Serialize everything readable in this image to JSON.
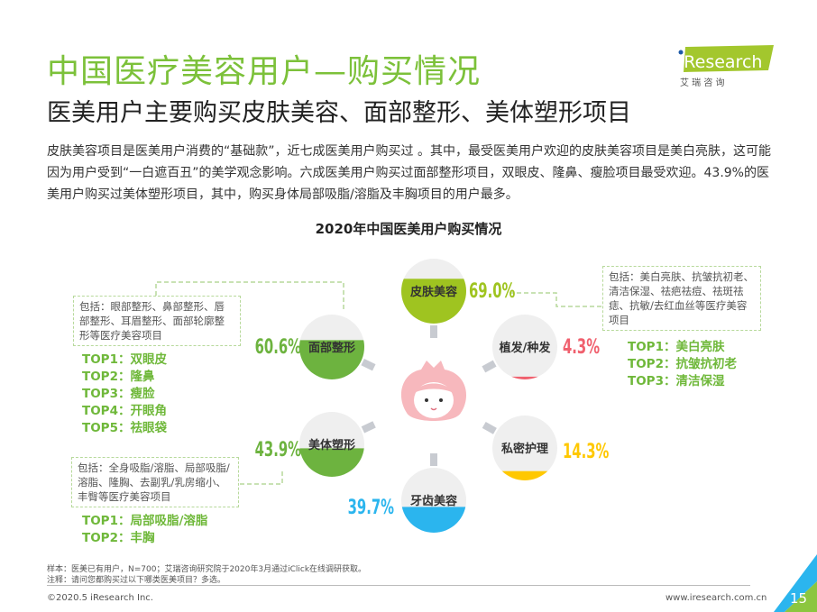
{
  "header": {
    "title": "中国医疗美容用户—购买情况",
    "subtitle": "医美用户主要购买皮肤美容、面部整形、美体塑形项目",
    "logo_text": "iResearch",
    "logo_cn": "艾 瑞 咨 询"
  },
  "intro": "皮肤美容项目是医美用户消费的“基础款”，近七成医美用户购买过 。其中，最受医美用户欢迎的皮肤美容项目是美白亮肤，这可能因为用户受到“一白遮百丑”的美学观念影响。六成医美用户购买过面部整形项目，双眼皮、隆鼻、瘦脸项目最受欢迎。43.9%的医美用户购买过美体塑形项目，其中，购买身体局部吸脂/溶脂及丰胸项目的用户最多。",
  "chart_data": {
    "type": "infographic-gauge",
    "title": "2020年中国医美用户购买情况",
    "unit": "%",
    "items": [
      {
        "category": "皮肤美容",
        "value": 69.0,
        "label": "69.0%",
        "color": "#9fc420"
      },
      {
        "category": "面部整形",
        "value": 60.6,
        "label": "60.6%",
        "color": "#6db33f"
      },
      {
        "category": "植发/种发",
        "value": 4.3,
        "label": "4.3%",
        "color": "#f0606e"
      },
      {
        "category": "美体塑形",
        "value": 43.9,
        "label": "43.9%",
        "color": "#6db33f"
      },
      {
        "category": "私密护理",
        "value": 14.3,
        "label": "14.3%",
        "color": "#ffc800"
      },
      {
        "category": "牙齿美容",
        "value": 39.7,
        "label": "39.7%",
        "color": "#2bb5ee"
      }
    ]
  },
  "details": {
    "face": {
      "desc": "包括：眼部整形、鼻部整形、唇部整形、耳眉整形、面部轮廓整形等医疗美容项目",
      "tops": [
        "TOP1：双眼皮",
        "TOP2：隆鼻",
        "TOP3：瘦脸",
        "TOP4：开眼角",
        "TOP5：祛眼袋"
      ]
    },
    "body": {
      "desc": "包括：全身吸脂/溶脂、局部吸脂/溶脂、隆胸、去副乳/乳房缩小、丰臀等医疗美容项目",
      "tops": [
        "TOP1：局部吸脂/溶脂",
        "TOP2：丰胸"
      ]
    },
    "skin": {
      "desc": "包括：美白亮肤、抗皱抗初老、清洁保湿、祛疤祛痘、祛斑祛痣、抗敏/去红血丝等医疗美容项目",
      "tops": [
        "TOP1：美白亮肤",
        "TOP2：抗皱抗初老",
        "TOP3：清洁保湿"
      ]
    }
  },
  "notes": {
    "sample": "样本：医美已有用户，N=700；艾瑞咨询研究院于2020年3月通过iClick在线调研获取。",
    "remark": "注释：请问您都购买过以下哪类医美项目？多选。"
  },
  "footer": {
    "copyright": "©2020.5 iResearch Inc.",
    "website": "www.iresearch.com.cn",
    "page_number": "15"
  },
  "colors": {
    "brand_green": "#7cc13a",
    "logo_green": "#a3c72d",
    "circle_bg": "#efefef",
    "connector": "#c8cbd1",
    "face": "#f7b8bd"
  }
}
